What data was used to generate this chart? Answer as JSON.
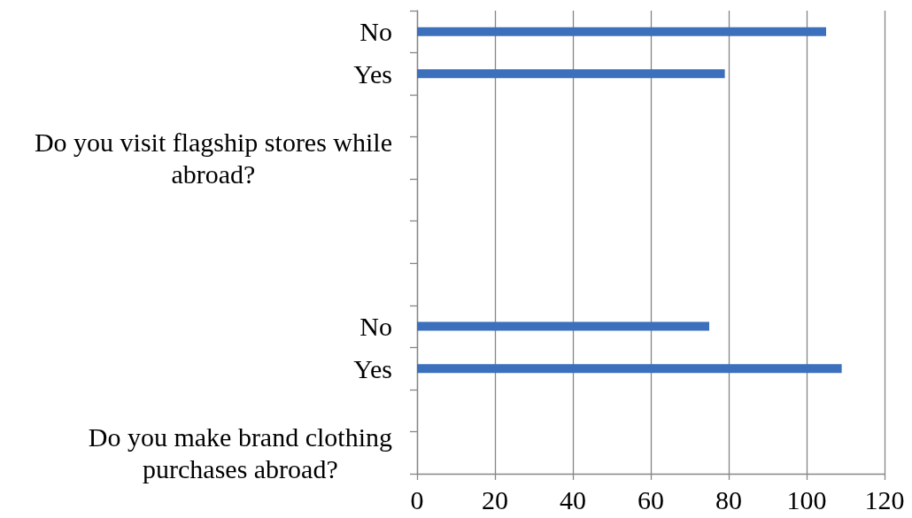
{
  "chart_data": {
    "type": "bar",
    "orientation": "horizontal",
    "categories": [
      "No",
      "Yes",
      null,
      "Do you visit flagship stores while abroad?",
      null,
      null,
      null,
      "No",
      "Yes",
      null,
      "Do you make brand clothing purchases abroad?"
    ],
    "values": [
      105,
      79,
      null,
      null,
      null,
      null,
      null,
      75,
      109,
      null,
      null
    ],
    "color": "#3c70bc",
    "xlim": [
      0,
      120
    ],
    "xticks": [
      0,
      20,
      40,
      60,
      80,
      100,
      120
    ],
    "grid": "x"
  }
}
